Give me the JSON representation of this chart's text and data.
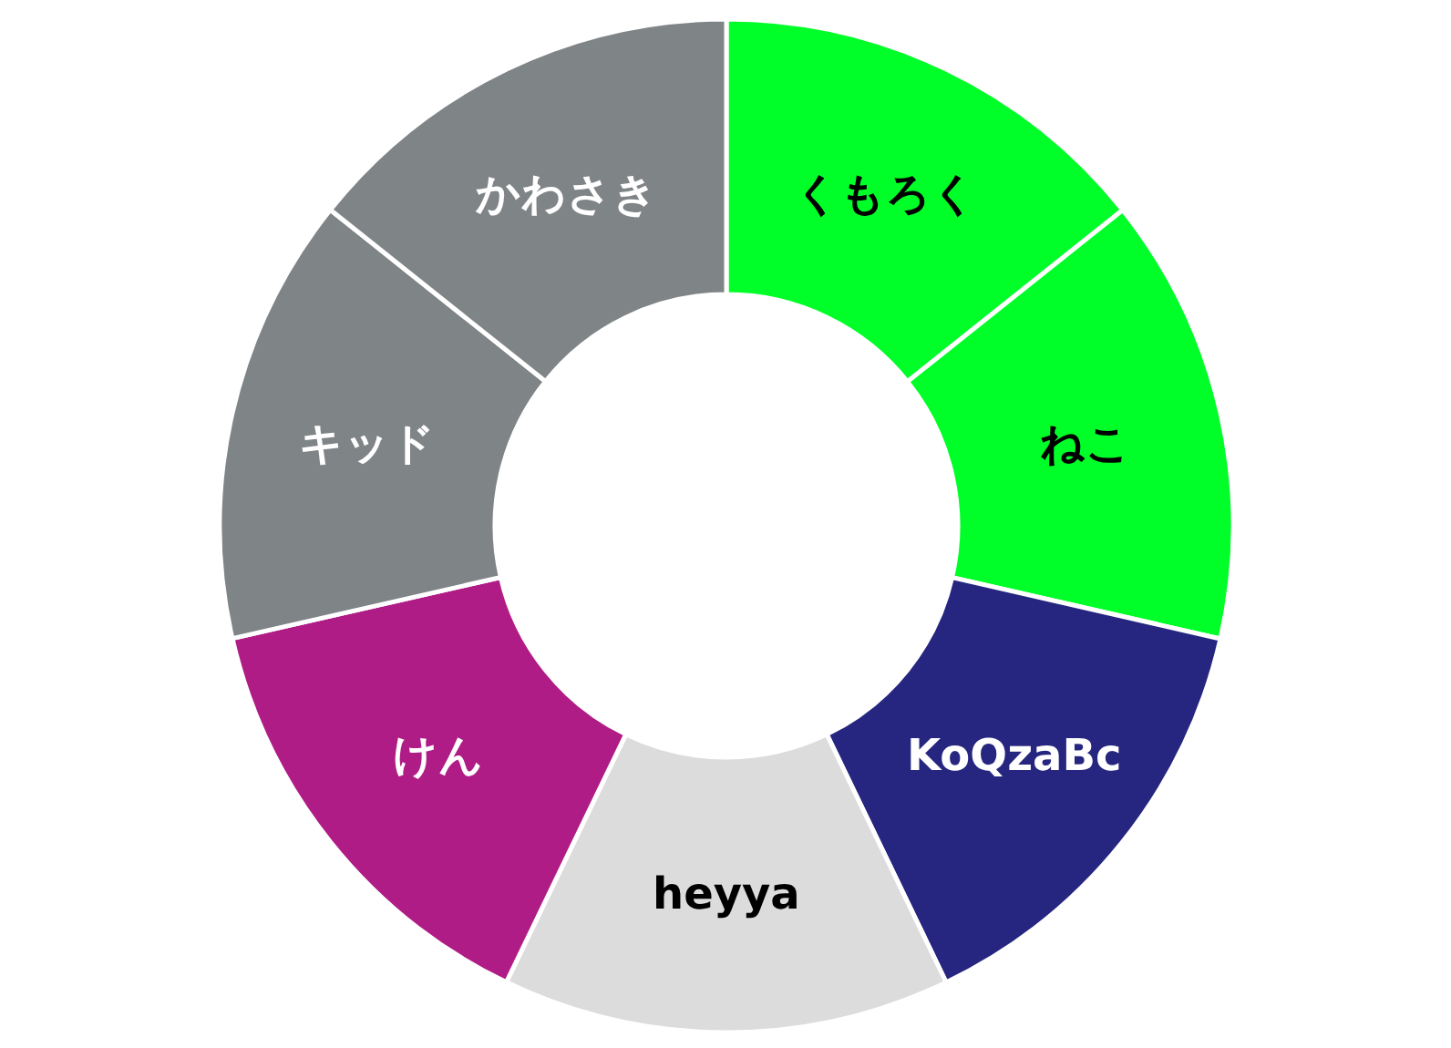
{
  "chart_data": {
    "type": "donut",
    "categories": [
      "くもろく",
      "ねこ",
      "KoQzaBc",
      "heyya",
      "けん",
      "キッド",
      "かわさき"
    ],
    "values": [
      14.29,
      14.29,
      14.28,
      14.29,
      14.28,
      14.29,
      14.28
    ],
    "colors": [
      "#00ff28",
      "#00ff28",
      "#262680",
      "#dcdcdc",
      "#b01c86",
      "#7f8487",
      "#7f8487"
    ]
  }
}
